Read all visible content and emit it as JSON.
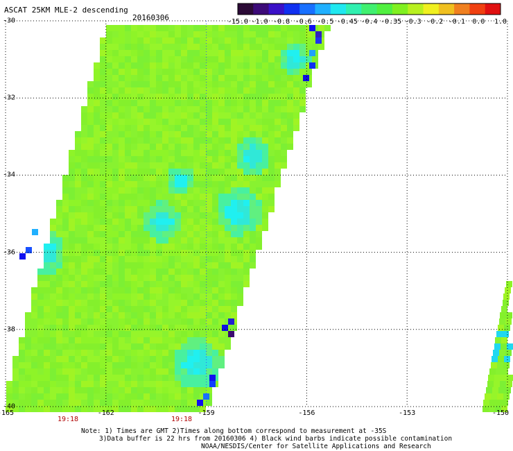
{
  "header": {
    "title": "ASCAT 25KM MLE-2 descending",
    "date": "20160306"
  },
  "colorbar": {
    "colors": [
      "#2b0a36",
      "#3c0a78",
      "#3a10c8",
      "#1030f0",
      "#1870ff",
      "#20b0ff",
      "#20e8f0",
      "#30f0b0",
      "#40f070",
      "#50f040",
      "#80f020",
      "#b8f020",
      "#f0f020",
      "#f0c020",
      "#f08020",
      "#f04010",
      "#e01010"
    ],
    "labels": [
      "-15.0",
      "-1.0",
      "-0.8",
      "-0.6",
      "-0.5",
      "-0.45",
      "-0.4",
      "-0.35",
      "-0.3",
      "-0.2",
      "-0.1",
      "0.0",
      "1.0"
    ]
  },
  "map": {
    "lat_labels": [
      "-30",
      "-32",
      "-34",
      "-36",
      "-38",
      "-40"
    ],
    "lon_labels": [
      "-165",
      "-162",
      "-159",
      "-156",
      "-153",
      "-150"
    ],
    "time_labels": [
      "19:18",
      "19:18"
    ]
  },
  "notes": {
    "line1": "Note: 1) Times are GMT 2)Times along bottom correspond to measurement at -35S",
    "line2": "3)Data buffer is 22 hrs from 20160306 4) Black wind barbs indicate possible contamination",
    "line3": "NOAA/NESDIS/Center for Satellite Applications and Research"
  }
}
